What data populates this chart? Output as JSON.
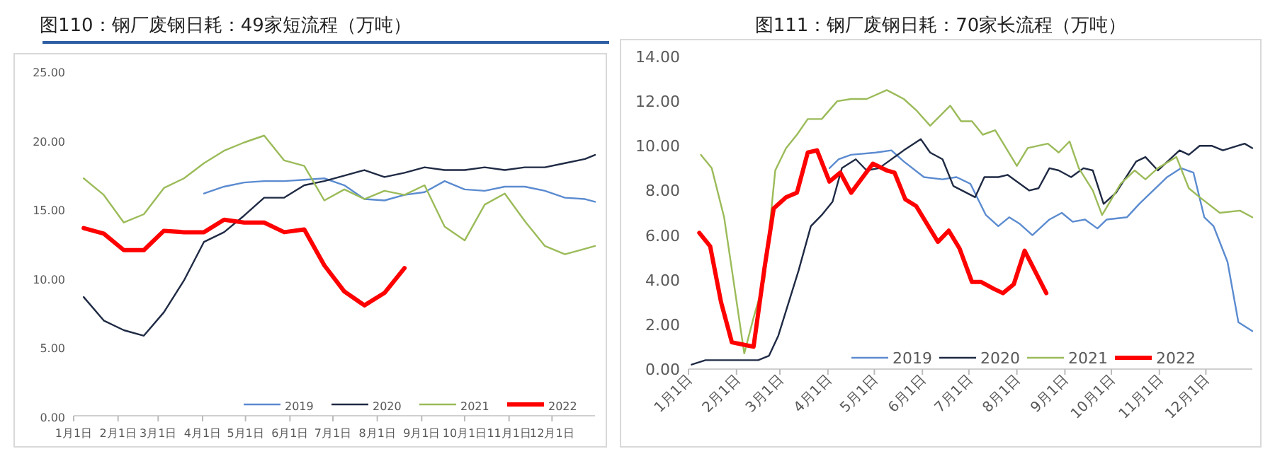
{
  "chart_data": [
    {
      "type": "line",
      "title": "图110：钢厂废钢日耗：49家短流程（万吨）",
      "xlim": [
        "--01-01",
        "--12-31"
      ],
      "xticks": [
        {
          "value": "--01-01",
          "label": "1月1日"
        },
        {
          "value": "--02-01",
          "label": "2月1日"
        },
        {
          "value": "--03-01",
          "label": "3月1日"
        },
        {
          "value": "--04-01",
          "label": "4月1日"
        },
        {
          "value": "--05-01",
          "label": "5月1日"
        },
        {
          "value": "--06-01",
          "label": "6月1日"
        },
        {
          "value": "--07-01",
          "label": "7月1日"
        },
        {
          "value": "--08-01",
          "label": "8月1日"
        },
        {
          "value": "--09-01",
          "label": "9月1日"
        },
        {
          "value": "--10-01",
          "label": "10月1日"
        },
        {
          "value": "--11-01",
          "label": "11月1日"
        },
        {
          "value": "--12-01",
          "label": "12月1日"
        }
      ],
      "ylim": [
        0,
        25
      ],
      "yticks": [
        {
          "value": 0,
          "label": "0.00"
        },
        {
          "value": 5,
          "label": "5.00"
        },
        {
          "value": 10,
          "label": "10.00"
        },
        {
          "value": 15,
          "label": "15.00"
        },
        {
          "value": 20,
          "label": "20.00"
        },
        {
          "value": 25,
          "label": "25.00"
        }
      ],
      "legend": "bottom right",
      "x": [
        "--01-08",
        "--01-22",
        "--02-05",
        "--02-19",
        "--03-05",
        "--03-19",
        "--04-02",
        "--04-16",
        "--04-30",
        "--05-14",
        "--05-28",
        "--06-11",
        "--06-25",
        "--07-09",
        "--07-23",
        "--08-06",
        "--08-20",
        "--09-03",
        "--09-17",
        "--10-01",
        "--10-15",
        "--10-29",
        "--11-12",
        "--11-26",
        "--12-10",
        "--12-24",
        "--12-31"
      ],
      "series": [
        {
          "name": "2019",
          "color": "#5b8bd0",
          "values": [
            null,
            null,
            null,
            null,
            null,
            null,
            16.1,
            16.6,
            16.9,
            17.0,
            17.0,
            17.1,
            17.2,
            16.7,
            15.7,
            15.6,
            16.0,
            16.2,
            17.0,
            16.4,
            16.3,
            16.6,
            16.6,
            16.3,
            15.8,
            15.7,
            15.5
          ]
        },
        {
          "name": "2020",
          "color": "#1f2a44",
          "values": [
            8.6,
            6.9,
            6.2,
            5.8,
            7.5,
            9.8,
            12.6,
            13.3,
            14.5,
            15.8,
            15.8,
            16.7,
            17.0,
            17.4,
            17.8,
            17.3,
            17.6,
            18.0,
            17.8,
            17.8,
            18.0,
            17.8,
            18.0,
            18.0,
            18.3,
            18.6,
            18.9
          ]
        },
        {
          "name": "2021",
          "color": "#9bbb59",
          "values": [
            17.2,
            16.0,
            14.0,
            14.6,
            16.5,
            17.2,
            18.3,
            19.2,
            19.8,
            20.3,
            18.5,
            18.1,
            15.6,
            16.4,
            15.7,
            16.3,
            16.0,
            16.7,
            13.7,
            12.7,
            15.3,
            16.1,
            14.1,
            12.3,
            11.7,
            12.1,
            12.3
          ]
        },
        {
          "name": "2022",
          "color": "#ff0000",
          "values": [
            13.6,
            13.2,
            12.0,
            12.0,
            13.4,
            13.3,
            13.3,
            14.2,
            14.0,
            14.0,
            13.3,
            13.5,
            10.9,
            9.0,
            8.0,
            8.9,
            10.7,
            null,
            null,
            null,
            null,
            null,
            null,
            null,
            null,
            null,
            null
          ]
        }
      ]
    },
    {
      "type": "line",
      "title": "图111：钢厂废钢日耗：70家长流程（万吨）",
      "xlim": [
        "--01-01",
        "--12-31"
      ],
      "xticks": [
        {
          "value": "--01-01",
          "label": "1月1日"
        },
        {
          "value": "--02-01",
          "label": "2月1日"
        },
        {
          "value": "--03-01",
          "label": "3月1日"
        },
        {
          "value": "--04-01",
          "label": "4月1日"
        },
        {
          "value": "--05-01",
          "label": "5月1日"
        },
        {
          "value": "--06-01",
          "label": "6月1日"
        },
        {
          "value": "--07-01",
          "label": "7月1日"
        },
        {
          "value": "--08-01",
          "label": "8月1日"
        },
        {
          "value": "--09-01",
          "label": "9月1日"
        },
        {
          "value": "--10-01",
          "label": "10月1日"
        },
        {
          "value": "--11-01",
          "label": "11月1日"
        },
        {
          "value": "--12-01",
          "label": "12月1日"
        }
      ],
      "ylim": [
        0,
        14
      ],
      "yticks": [
        {
          "value": 0,
          "label": "0.00"
        },
        {
          "value": 2,
          "label": "2.00"
        },
        {
          "value": 4,
          "label": "4.00"
        },
        {
          "value": 6,
          "label": "6.00"
        },
        {
          "value": 8,
          "label": "8.00"
        },
        {
          "value": 10,
          "label": "10.00"
        },
        {
          "value": 12,
          "label": "12.00"
        },
        {
          "value": 14,
          "label": "14.00"
        }
      ],
      "legend": "bottom",
      "series": [
        {
          "name": "2019",
          "color": "#5b8bd0",
          "x": [
            "--04-02",
            "--04-08",
            "--04-16",
            "--05-02",
            "--05-12",
            "--05-20",
            "--06-02",
            "--06-14",
            "--06-23",
            "--07-02",
            "--07-12",
            "--07-20",
            "--07-27",
            "--08-03",
            "--08-11",
            "--08-22",
            "--08-30",
            "--09-06",
            "--09-14",
            "--09-22",
            "--09-28",
            "--10-11",
            "--10-19",
            "--10-28",
            "--11-06",
            "--11-15",
            "--11-23",
            "--11-30",
            "--12-06",
            "--12-15",
            "--12-22",
            "--12-31"
          ],
          "values": [
            9.0,
            9.4,
            9.6,
            9.7,
            9.8,
            9.3,
            8.6,
            8.5,
            8.6,
            8.3,
            6.9,
            6.4,
            6.8,
            6.5,
            6.0,
            6.7,
            7.0,
            6.6,
            6.7,
            6.3,
            6.7,
            6.8,
            7.4,
            8.0,
            8.6,
            9.0,
            8.8,
            6.8,
            6.4,
            4.8,
            2.1,
            1.7
          ]
        },
        {
          "name": "2020",
          "color": "#1f2a44",
          "x": [
            "--01-03",
            "--01-12",
            "--02-15",
            "--02-22",
            "--02-28",
            "--03-13",
            "--03-21",
            "--03-28",
            "--04-04",
            "--04-10",
            "--04-19",
            "--04-26",
            "--05-04",
            "--05-20",
            "--05-31",
            "--06-06",
            "--06-14",
            "--06-21",
            "--07-05",
            "--07-11",
            "--07-20",
            "--07-26",
            "--08-09",
            "--08-15",
            "--08-22",
            "--08-28",
            "--09-05",
            "--09-13",
            "--09-19",
            "--09-26",
            "--10-04",
            "--10-17",
            "--10-23",
            "--10-31",
            "--11-14",
            "--11-20",
            "--11-27",
            "--12-05",
            "--12-12",
            "--12-26",
            "--12-31"
          ],
          "values": [
            0.2,
            0.4,
            0.4,
            0.6,
            1.5,
            4.4,
            6.4,
            6.9,
            7.5,
            9.0,
            9.4,
            8.9,
            9.0,
            9.8,
            10.3,
            9.7,
            9.4,
            8.2,
            7.7,
            8.6,
            8.6,
            8.7,
            8.0,
            8.1,
            9.0,
            8.9,
            8.6,
            9.0,
            8.9,
            7.4,
            7.9,
            9.3,
            9.5,
            8.9,
            9.8,
            9.6,
            10.0,
            10.0,
            9.8,
            10.1,
            9.9
          ]
        },
        {
          "name": "2021",
          "color": "#9bbb59",
          "x": [
            "--01-09",
            "--01-16",
            "--01-24",
            "--02-06",
            "--02-12",
            "--02-19",
            "--02-26",
            "--03-05",
            "--03-12",
            "--03-19",
            "--03-28",
            "--04-07",
            "--04-16",
            "--04-26",
            "--05-09",
            "--05-20",
            "--05-28",
            "--06-06",
            "--06-19",
            "--06-26",
            "--07-03",
            "--07-10",
            "--07-18",
            "--08-01",
            "--08-08",
            "--08-21",
            "--08-28",
            "--09-04",
            "--09-10",
            "--09-19",
            "--09-25",
            "--10-07",
            "--10-16",
            "--10-23",
            "--10-31",
            "--11-12",
            "--11-20",
            "--11-27",
            "--12-10",
            "--12-23",
            "--12-31"
          ],
          "values": [
            9.6,
            9.0,
            6.8,
            0.7,
            2.3,
            4.0,
            8.9,
            9.9,
            10.5,
            11.2,
            11.2,
            12.0,
            12.1,
            12.1,
            12.5,
            12.1,
            11.6,
            10.9,
            11.8,
            11.1,
            11.1,
            10.5,
            10.7,
            9.1,
            9.9,
            10.1,
            9.7,
            10.2,
            9.0,
            8.0,
            6.9,
            8.3,
            8.9,
            8.5,
            9.0,
            9.5,
            8.1,
            7.7,
            7.0,
            7.1,
            6.8
          ]
        },
        {
          "name": "2022",
          "color": "#ff0000",
          "x": [
            "--01-08",
            "--01-15",
            "--01-22",
            "--01-29",
            "--02-05",
            "--02-12",
            "--02-19",
            "--02-25",
            "--03-05",
            "--03-12",
            "--03-19",
            "--03-25",
            "--04-02",
            "--04-09",
            "--04-16",
            "--04-30",
            "--05-09",
            "--05-14",
            "--05-21",
            "--05-28",
            "--06-11",
            "--06-18",
            "--06-25",
            "--07-03",
            "--07-09",
            "--07-17",
            "--07-23",
            "--07-30",
            "--08-06",
            "--08-20"
          ],
          "values": [
            6.1,
            5.5,
            3.0,
            1.2,
            1.1,
            1.0,
            4.5,
            7.2,
            7.7,
            7.9,
            9.7,
            9.8,
            8.4,
            8.8,
            7.9,
            9.2,
            8.9,
            8.8,
            7.6,
            7.3,
            5.7,
            6.2,
            5.4,
            3.9,
            3.9,
            3.6,
            3.4,
            3.8,
            5.3,
            3.4
          ]
        }
      ]
    }
  ]
}
